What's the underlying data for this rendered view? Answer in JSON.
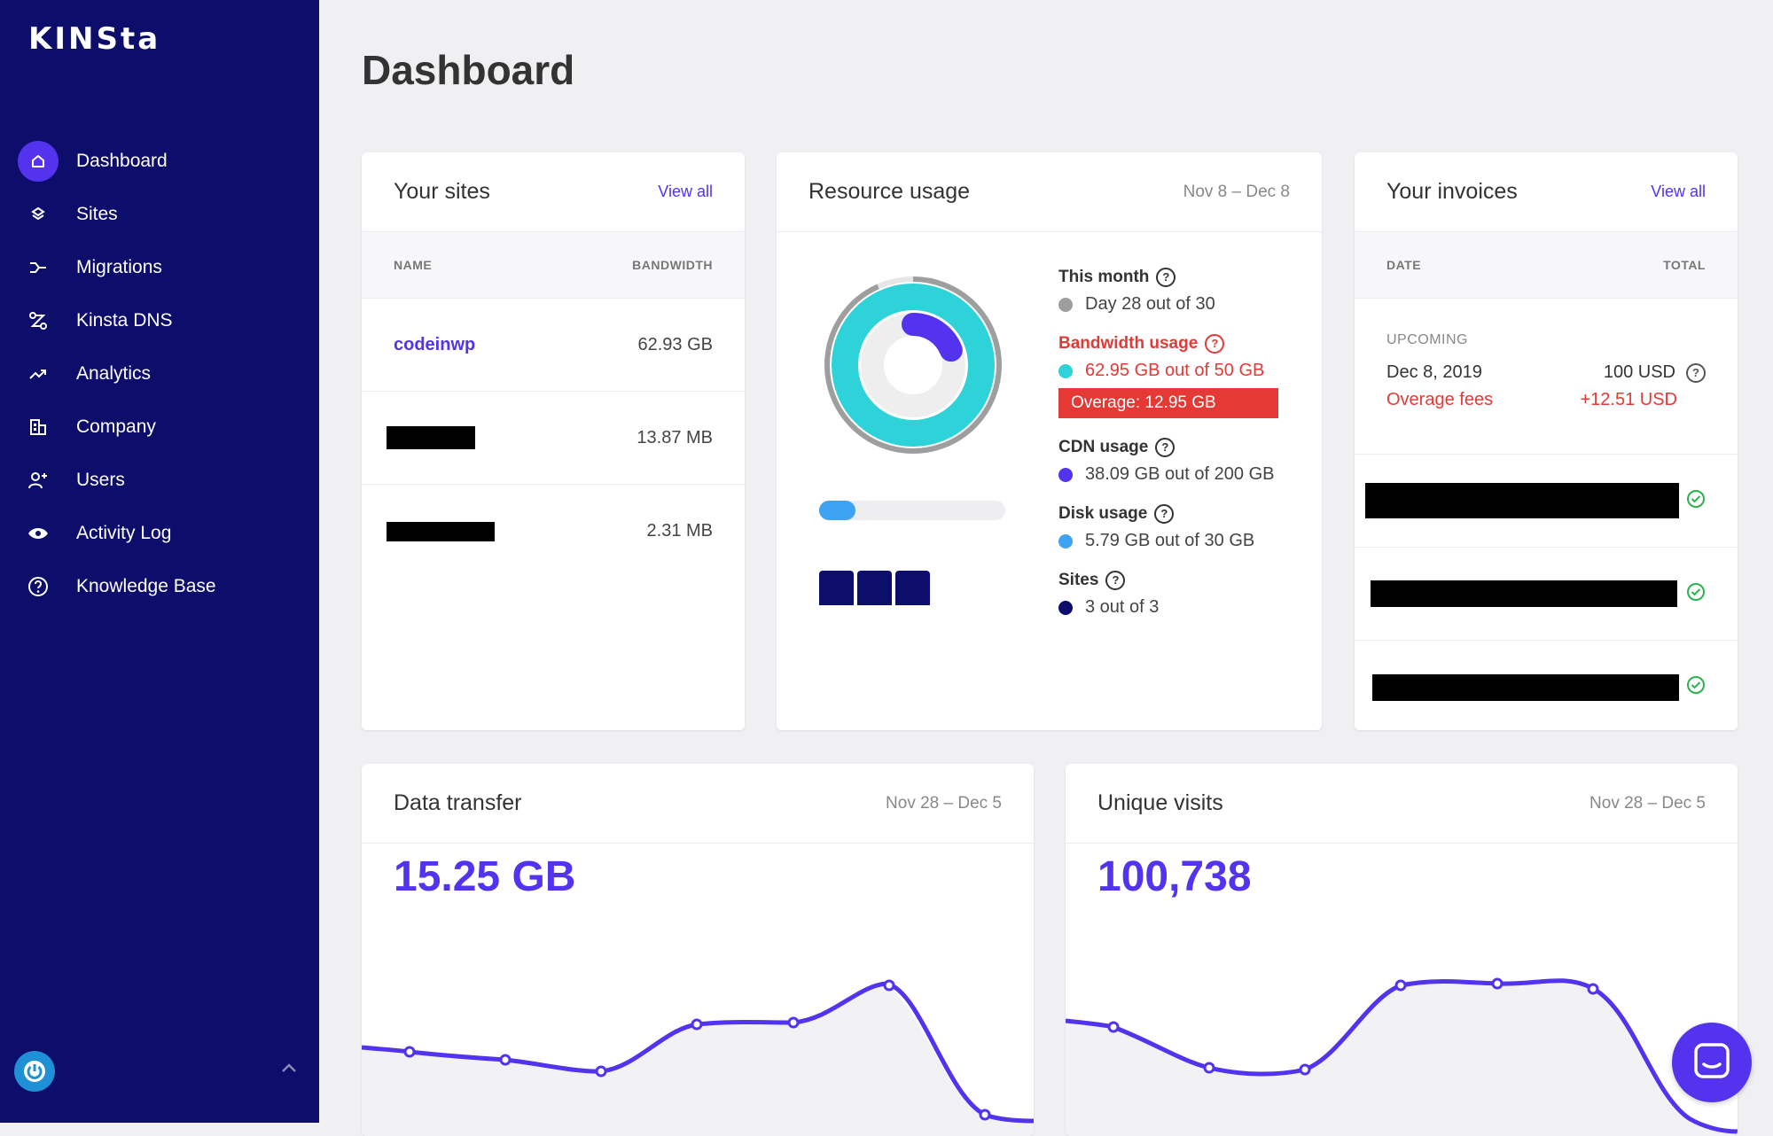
{
  "app": {
    "logo": "KINSta"
  },
  "sidebar": {
    "items": [
      {
        "label": "Dashboard",
        "icon": "home-icon",
        "active": true
      },
      {
        "label": "Sites",
        "icon": "layers-icon"
      },
      {
        "label": "Migrations",
        "icon": "migrate-icon"
      },
      {
        "label": "Kinsta DNS",
        "icon": "dns-icon"
      },
      {
        "label": "Analytics",
        "icon": "trend-icon"
      },
      {
        "label": "Company",
        "icon": "building-icon"
      },
      {
        "label": "Users",
        "icon": "add-user-icon"
      },
      {
        "label": "Activity Log",
        "icon": "eye-icon"
      },
      {
        "label": "Knowledge Base",
        "icon": "help-icon"
      }
    ]
  },
  "page": {
    "title": "Dashboard"
  },
  "sites": {
    "title": "Your sites",
    "view_all": "View all",
    "col_name": "NAME",
    "col_bandwidth": "BANDWIDTH",
    "rows": [
      {
        "name": "codeinwp",
        "bandwidth": "62.93 GB"
      },
      {
        "name": "",
        "bandwidth": "13.87 MB"
      },
      {
        "name": "",
        "bandwidth": "2.31 MB"
      }
    ]
  },
  "resources": {
    "title": "Resource usage",
    "date": "Nov 8 – Dec 8",
    "this_month_label": "This month",
    "this_month_val": "Day 28 out of 30",
    "bandwidth_label": "Bandwidth usage",
    "bandwidth_val": "62.95 GB out of 50 GB",
    "overage": "Overage: 12.95 GB",
    "cdn_label": "CDN usage",
    "cdn_val": "38.09 GB out of 200 GB",
    "disk_label": "Disk usage",
    "disk_val": "5.79 GB out of 30 GB",
    "sites_label": "Sites",
    "sites_val": "3 out of 3",
    "month_progress": 0.933,
    "bandwidth_progress": 1.0,
    "cdn_progress": 0.19,
    "disk_progress": 0.193,
    "sites_used": 3,
    "colors": {
      "month": "#9e9e9e",
      "bandwidth": "#2ed3d9",
      "cdn": "#5333ed",
      "disk": "#3fa3f4",
      "sites": "#0d0d6b",
      "alert": "#e53935"
    }
  },
  "invoices": {
    "title": "Your invoices",
    "view_all": "View all",
    "col_date": "DATE",
    "col_total": "TOTAL",
    "upcoming_label": "UPCOMING",
    "upcoming_date": "Dec 8, 2019",
    "upcoming_total": "100 USD",
    "fees_label": "Overage fees",
    "fees_val": "+12.51 USD"
  },
  "transfer": {
    "title": "Data transfer",
    "date": "Nov 28 – Dec 5",
    "value": "15.25 GB"
  },
  "visits": {
    "title": "Unique visits",
    "date": "Nov 28 – Dec 5",
    "value": "100,738"
  },
  "accent": "#5333ed",
  "sidebar_bg": "#0d0d6b"
}
